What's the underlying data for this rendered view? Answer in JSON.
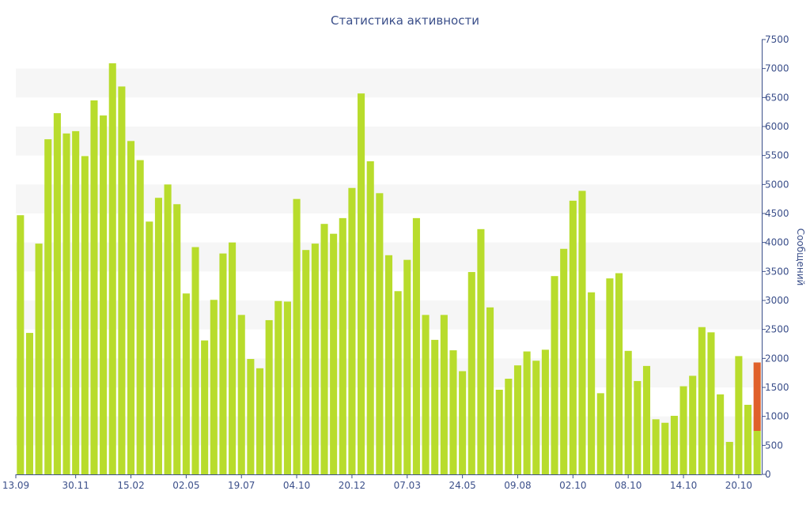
{
  "chart_data": {
    "type": "bar",
    "title": "Статистика активности",
    "ylabel": "Сообщений",
    "xlabel": "",
    "ylim": [
      0,
      7500
    ],
    "yticks": [
      0,
      500,
      1000,
      1500,
      2000,
      2500,
      3000,
      3500,
      4000,
      4500,
      5000,
      5500,
      6000,
      6500,
      7000,
      7500
    ],
    "y_axis_side": "right",
    "grid": "alternating horizontal bands",
    "x_tick_labels": [
      {
        "label": "13.09",
        "index": 0
      },
      {
        "label": "30.11",
        "index": 6
      },
      {
        "label": "15.02",
        "index": 12
      },
      {
        "label": "02.05",
        "index": 18
      },
      {
        "label": "19.07",
        "index": 24
      },
      {
        "label": "04.10",
        "index": 30
      },
      {
        "label": "20.12",
        "index": 36
      },
      {
        "label": "07.03",
        "index": 42
      },
      {
        "label": "24.05",
        "index": 48
      },
      {
        "label": "09.08",
        "index": 54
      },
      {
        "label": "02.10",
        "index": 60
      },
      {
        "label": "08.10",
        "index": 66
      },
      {
        "label": "14.10",
        "index": 72
      },
      {
        "label": "20.10",
        "index": 78
      }
    ],
    "colors": {
      "bar": "#b8dc2c",
      "highlight": "#e0602a",
      "axis": "#3b4f8a",
      "band": "#f6f6f6"
    },
    "series": [
      {
        "values": [
          4470,
          2440,
          3980,
          5780,
          6230,
          5880,
          5920,
          5490,
          6450,
          6190,
          7090,
          6690,
          5750,
          5420,
          4360,
          4770,
          5000,
          4660,
          3120,
          3920,
          2310,
          3010,
          3810,
          4000,
          2750,
          1990,
          1830,
          2660,
          2990,
          2980,
          4750,
          3870,
          3980,
          4320,
          4150,
          4420,
          4940,
          6570,
          5400,
          4850,
          3780,
          3160,
          3700,
          4420,
          2750,
          2320,
          2750,
          2140,
          1780,
          3490,
          4230,
          2880,
          1460,
          1650,
          1880,
          2120,
          1960,
          2150,
          3420,
          3890,
          4720,
          4890,
          3140,
          1400,
          3380,
          3470,
          2130,
          1610,
          1870,
          950,
          890,
          1010,
          1520,
          1700,
          2540,
          2450,
          1380,
          560,
          2040,
          1200,
          750
        ]
      },
      {
        "values": [
          0,
          0,
          0,
          0,
          0,
          0,
          0,
          0,
          0,
          0,
          0,
          0,
          0,
          0,
          0,
          0,
          0,
          0,
          0,
          0,
          0,
          0,
          0,
          0,
          0,
          0,
          0,
          0,
          0,
          0,
          0,
          0,
          0,
          0,
          0,
          0,
          0,
          0,
          0,
          0,
          0,
          0,
          0,
          0,
          0,
          0,
          0,
          0,
          0,
          0,
          0,
          0,
          0,
          0,
          0,
          0,
          0,
          0,
          0,
          0,
          0,
          0,
          0,
          0,
          0,
          0,
          0,
          0,
          0,
          0,
          0,
          0,
          0,
          0,
          0,
          0,
          0,
          0,
          0,
          0,
          1180
        ]
      }
    ]
  }
}
